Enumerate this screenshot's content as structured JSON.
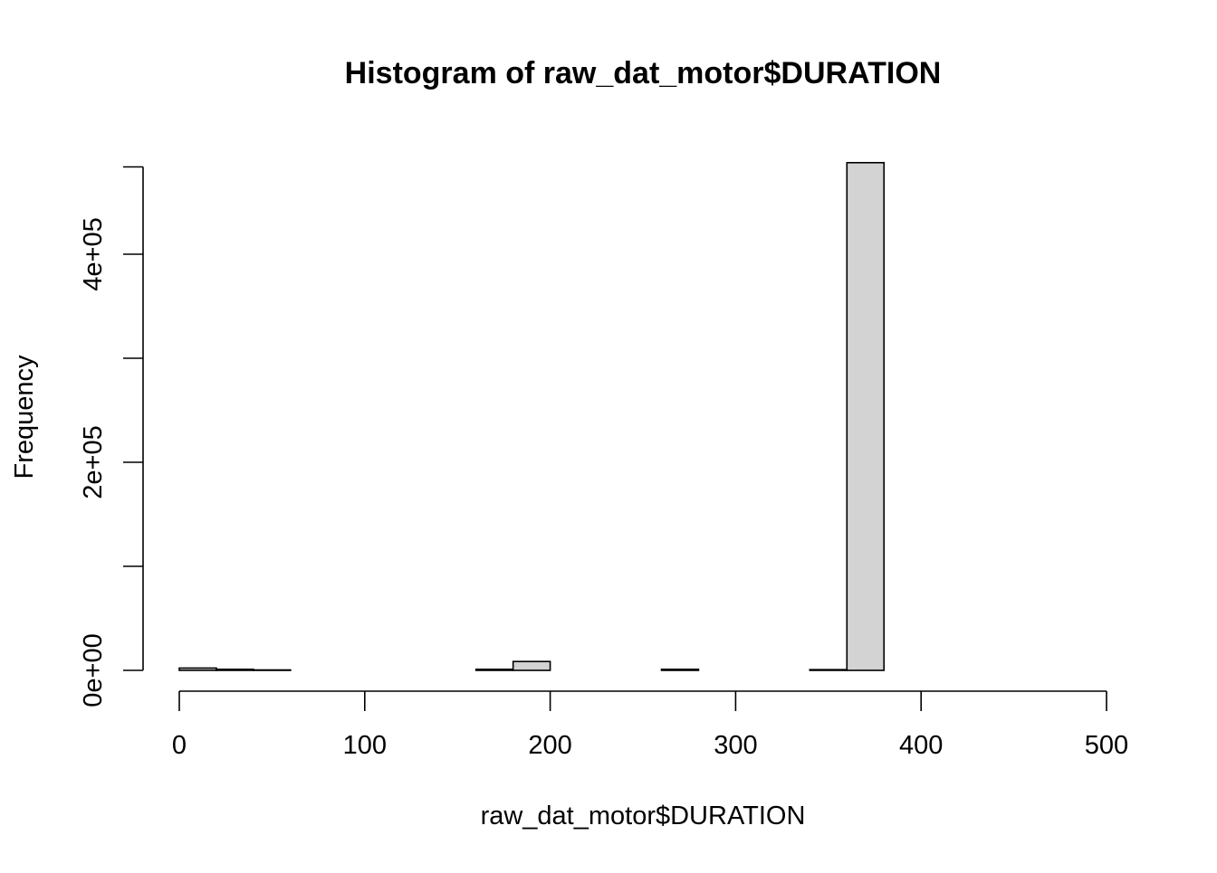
{
  "chart_data": {
    "type": "bar",
    "subtype": "histogram",
    "title": "Histogram of raw_dat_motor$DURATION",
    "xlabel": "raw_dat_motor$DURATION",
    "ylabel": "Frequency",
    "xlim": [
      0,
      500
    ],
    "ylim": [
      0,
      490000
    ],
    "x_ticks": [
      0,
      100,
      200,
      300,
      400,
      500
    ],
    "x_tick_labels": [
      "0",
      "100",
      "200",
      "300",
      "400",
      "500"
    ],
    "y_ticks": [
      0,
      100000,
      200000,
      300000,
      400000
    ],
    "y_tick_labels": [
      "0e+00",
      "",
      "2e+05",
      "",
      "4e+05"
    ],
    "bin_width": 20,
    "bins": [
      {
        "x0": 0,
        "x1": 20,
        "count": 2200
      },
      {
        "x0": 20,
        "x1": 40,
        "count": 1000
      },
      {
        "x0": 40,
        "x1": 60,
        "count": 400
      },
      {
        "x0": 60,
        "x1": 80,
        "count": 0
      },
      {
        "x0": 80,
        "x1": 100,
        "count": 0
      },
      {
        "x0": 100,
        "x1": 120,
        "count": 0
      },
      {
        "x0": 120,
        "x1": 140,
        "count": 0
      },
      {
        "x0": 140,
        "x1": 160,
        "count": 0
      },
      {
        "x0": 160,
        "x1": 180,
        "count": 1000
      },
      {
        "x0": 180,
        "x1": 200,
        "count": 8500
      },
      {
        "x0": 200,
        "x1": 220,
        "count": 0
      },
      {
        "x0": 220,
        "x1": 240,
        "count": 0
      },
      {
        "x0": 240,
        "x1": 260,
        "count": 0
      },
      {
        "x0": 260,
        "x1": 280,
        "count": 1000
      },
      {
        "x0": 280,
        "x1": 300,
        "count": 0
      },
      {
        "x0": 300,
        "x1": 320,
        "count": 0
      },
      {
        "x0": 320,
        "x1": 340,
        "count": 0
      },
      {
        "x0": 340,
        "x1": 360,
        "count": 700
      },
      {
        "x0": 360,
        "x1": 380,
        "count": 488000
      },
      {
        "x0": 380,
        "x1": 400,
        "count": 0
      },
      {
        "x0": 400,
        "x1": 420,
        "count": 0
      },
      {
        "x0": 420,
        "x1": 440,
        "count": 0
      },
      {
        "x0": 440,
        "x1": 460,
        "count": 0
      },
      {
        "x0": 460,
        "x1": 480,
        "count": 0
      },
      {
        "x0": 480,
        "x1": 500,
        "count": 0
      }
    ],
    "bar_fill": "#d3d3d3",
    "bar_stroke": "#000000",
    "grid": false,
    "legend": "none"
  }
}
